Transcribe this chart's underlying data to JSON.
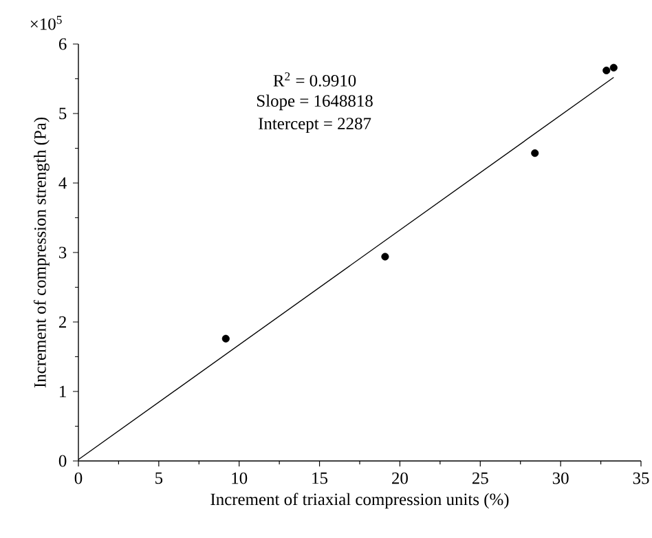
{
  "chart_data": {
    "type": "scatter",
    "xlabel": "Increment of triaxial compression units (%)",
    "ylabel": "Increment of compression strength (Pa)",
    "annotations": [
      "×10$^{5}$",
      "R$^{2}$ = 0.9910",
      "Slope = 1648818",
      "Intercept = 2287"
    ],
    "series": [
      {
        "color": "#000000",
        "marker": "circle",
        "x": [
          9.17,
          19.08,
          28.4,
          32.85,
          33.3
        ],
        "values": [
          1.76,
          2.94,
          4.43,
          5.62,
          5.66
        ]
      },
      {
        "type": "line",
        "color": "#000000",
        "marker": "none",
        "line_style": "solid",
        "x": [
          0,
          33.3
        ],
        "values": [
          0.02,
          5.52
        ]
      }
    ],
    "xlim": [
      0,
      35
    ],
    "xticks": [
      0,
      5,
      10,
      15,
      20,
      25,
      30,
      35
    ],
    "ylim": [
      0,
      6
    ],
    "yticks": [
      0,
      1,
      2,
      3,
      4,
      5,
      6
    ]
  }
}
